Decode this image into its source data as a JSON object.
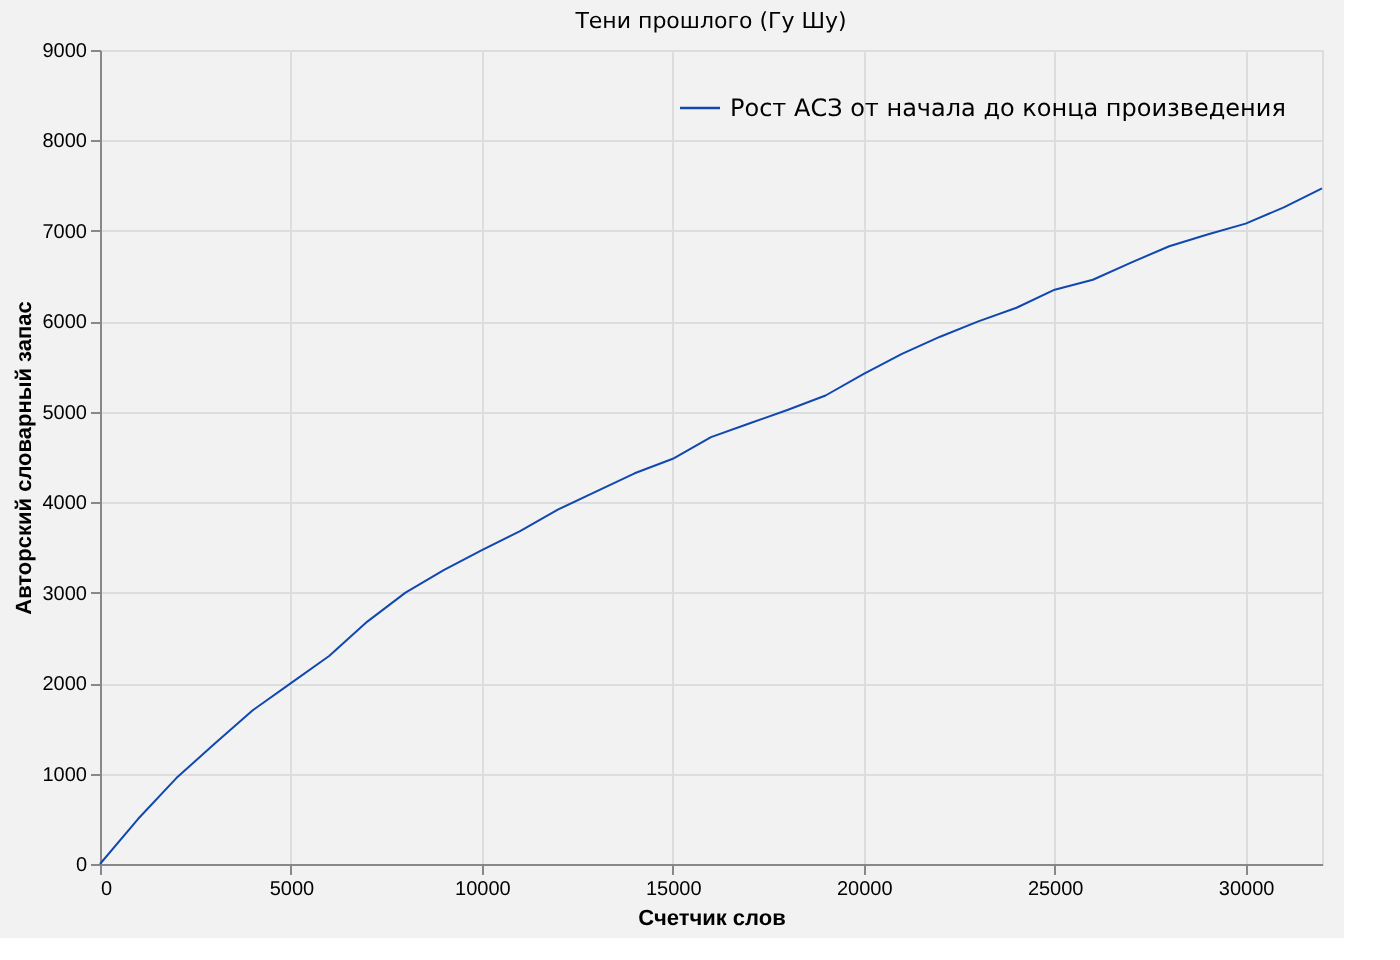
{
  "chart_data": {
    "type": "line",
    "title": "Тени прошлого (Гу Шу)",
    "xlabel": "Счетчик слов",
    "ylabel": "Авторский словарный запас",
    "x": [
      0,
      1000,
      2000,
      3000,
      4000,
      5000,
      6000,
      7000,
      8000,
      9000,
      10000,
      11000,
      12000,
      13000,
      14000,
      15000,
      16000,
      17000,
      18000,
      19000,
      20000,
      21000,
      22000,
      23000,
      24000,
      25000,
      26000,
      27000,
      28000,
      29000,
      30000,
      31000,
      32000
    ],
    "series": [
      {
        "name": "Рост АСЗ от начала до конца произведения",
        "color": "#1048b0",
        "values": [
          0,
          500,
          950,
          1330,
          1700,
          2000,
          2300,
          2680,
          3000,
          3250,
          3470,
          3680,
          3920,
          4120,
          4320,
          4480,
          4720,
          4870,
          5020,
          5180,
          5420,
          5640,
          5830,
          6000,
          6150,
          6350,
          6460,
          6650,
          6830,
          6960,
          7080,
          7260,
          7470
        ]
      }
    ],
    "xlim": [
      0,
      32000
    ],
    "ylim": [
      0,
      9000
    ],
    "xticks": [
      0,
      5000,
      10000,
      15000,
      20000,
      25000,
      30000
    ],
    "yticks": [
      0,
      1000,
      2000,
      3000,
      4000,
      5000,
      6000,
      7000,
      8000,
      9000
    ],
    "grid": true,
    "legend": "top right",
    "line_style": "solid"
  }
}
